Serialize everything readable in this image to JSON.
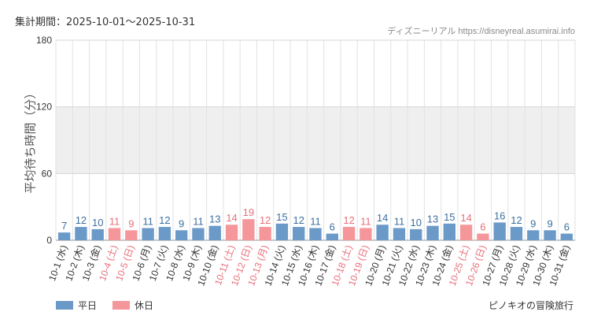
{
  "header": {
    "period": "集計期間：2025-10-01～2025-10-31",
    "credit": "ディズニーリアル https://disneyreal.asumirai.info"
  },
  "footer": {
    "attraction": "ピノキオの冒険旅行"
  },
  "colors": {
    "weekday": "#6b9ac8",
    "holiday": "#f4969a",
    "holiday_text": "#e8707a",
    "band": "#efefef",
    "grid": "#e2e2e2"
  },
  "chart_data": {
    "type": "bar",
    "ylabel": "平均待ち時間（分）",
    "ylim": [
      0,
      180
    ],
    "yticks": [
      0,
      60,
      120,
      180
    ],
    "shaded_band": [
      60,
      120
    ],
    "grid": true,
    "legend_position": "bottom-left",
    "categories": [
      "10-1 (水)",
      "10-2 (木)",
      "10-3 (金)",
      "10-4 (土)",
      "10-5 (日)",
      "10-6 (月)",
      "10-7 (火)",
      "10-8 (水)",
      "10-9 (木)",
      "10-10 (金)",
      "10-11 (土)",
      "10-12 (日)",
      "10-13 (月)",
      "10-14 (火)",
      "10-15 (水)",
      "10-16 (木)",
      "10-17 (金)",
      "10-18 (土)",
      "10-19 (日)",
      "10-20 (月)",
      "10-21 (火)",
      "10-22 (水)",
      "10-23 (木)",
      "10-24 (金)",
      "10-25 (土)",
      "10-26 (日)",
      "10-27 (月)",
      "10-28 (火)",
      "10-29 (水)",
      "10-30 (木)",
      "10-31 (金)"
    ],
    "values": [
      7,
      12,
      10,
      11,
      9,
      11,
      12,
      9,
      11,
      13,
      14,
      19,
      12,
      15,
      12,
      11,
      6,
      12,
      11,
      14,
      11,
      10,
      13,
      15,
      14,
      6,
      16,
      12,
      9,
      9,
      6
    ],
    "holiday": [
      false,
      false,
      false,
      true,
      true,
      false,
      false,
      false,
      false,
      false,
      true,
      true,
      true,
      false,
      false,
      false,
      false,
      true,
      true,
      false,
      false,
      false,
      false,
      false,
      true,
      true,
      false,
      false,
      false,
      false,
      false
    ],
    "series_names": [
      "平日",
      "休日"
    ]
  }
}
